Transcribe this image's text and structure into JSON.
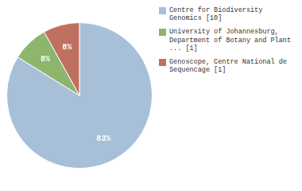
{
  "chart_data": {
    "type": "pie",
    "categories": [
      "Centre for Biodiversity\nGenomics [10]",
      "University of Johannesburg,\nDepartment of Botany and Plant\n... [1]",
      "Genoscope, Centre National de\nSequencage [1]"
    ],
    "values": [
      83,
      8,
      8
    ],
    "value_labels": [
      "83%",
      "8%",
      "8%"
    ],
    "colors": [
      "#a8bfd8",
      "#8db56b",
      "#c07060"
    ],
    "data_labels": true,
    "legend": "right"
  }
}
